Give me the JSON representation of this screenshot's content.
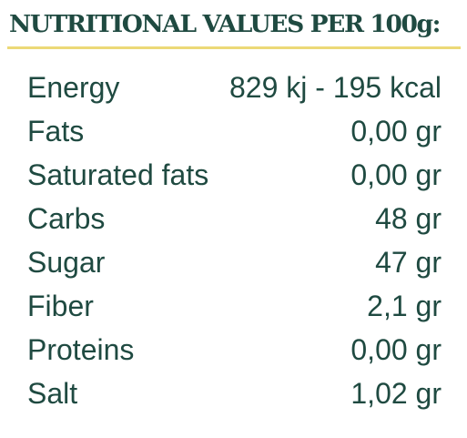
{
  "heading": "NUTRITIONAL VALUES PER 100g:",
  "colors": {
    "text": "#1f4a41",
    "rule": "#ecd977",
    "background": "#ffffff"
  },
  "rows": [
    {
      "label": "Energy",
      "value": "829 kj - 195 kcal"
    },
    {
      "label": "Fats",
      "value": "0,00 gr"
    },
    {
      "label": "Saturated fats",
      "value": "0,00 gr"
    },
    {
      "label": "Carbs",
      "value": "48 gr"
    },
    {
      "label": "Sugar",
      "value": "47 gr"
    },
    {
      "label": "Fiber",
      "value": "2,1 gr"
    },
    {
      "label": "Proteins",
      "value": "0,00 gr"
    },
    {
      "label": "Salt",
      "value": "1,02 gr"
    }
  ]
}
